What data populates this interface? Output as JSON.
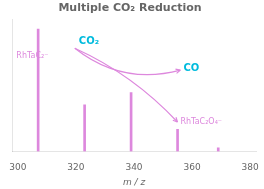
{
  "chart_data": {
    "type": "bar",
    "title": "Multiple CO₂ Reduction",
    "x_label": "m / z",
    "x": [
      307,
      323,
      339,
      355,
      369
    ],
    "values": [
      1.0,
      0.38,
      0.48,
      0.18,
      0.03
    ],
    "color": "#DD88DD",
    "xlim": [
      298,
      382
    ],
    "xticks": [
      300,
      320,
      340,
      360,
      380
    ],
    "ylim": [
      0,
      1.08
    ],
    "grid": false,
    "legend": "none",
    "tick_labels": "x",
    "annotations": [
      {
        "text": "RhTaC₂⁻",
        "x": 299.5,
        "y": 0.78,
        "color": "#DD88DD"
      },
      {
        "text": "CO₂",
        "x": 321,
        "y": 0.9,
        "color": "#00BBDD"
      },
      {
        "text": "CO",
        "x": 357,
        "y": 0.68,
        "color": "#00BBDD"
      },
      {
        "text": "RhTaC₂O₄⁻",
        "x": 356,
        "y": 0.24,
        "color": "#DD88DD"
      }
    ]
  }
}
